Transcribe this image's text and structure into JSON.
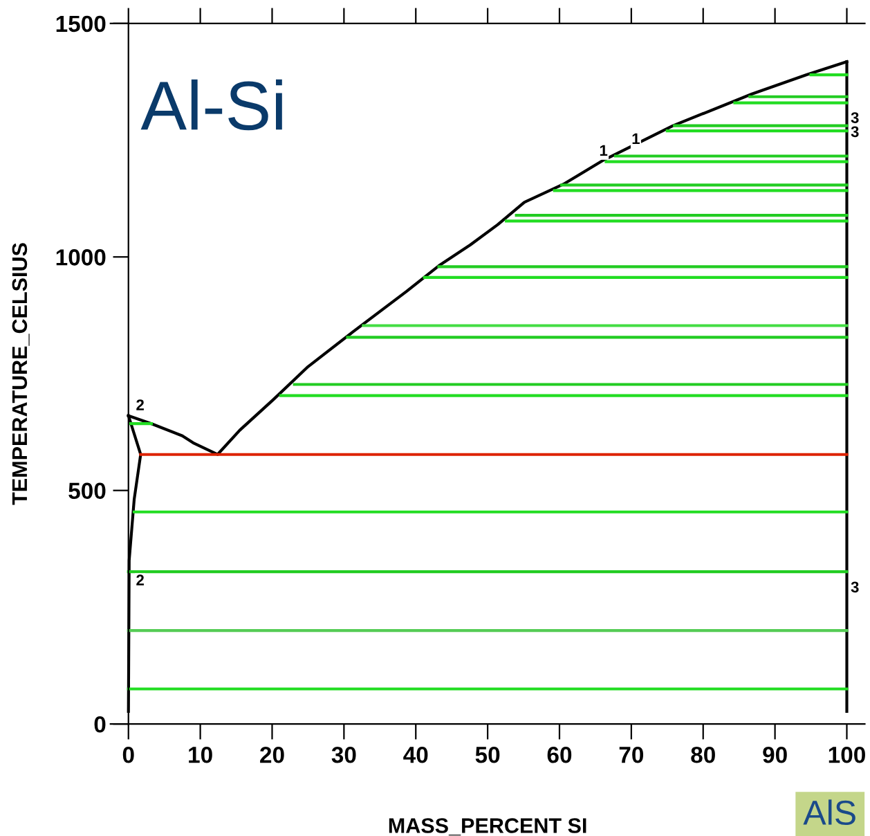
{
  "chart_data": {
    "type": "line",
    "title": "Al-Si",
    "xlabel": "MASS_PERCENT SI",
    "ylabel": "TEMPERATURE_CELSIUS",
    "xlim": [
      -2.5,
      102.5
    ],
    "ylim": [
      0,
      1500
    ],
    "xticks": [
      0,
      10,
      20,
      30,
      40,
      50,
      60,
      70,
      80,
      90,
      100
    ],
    "yticks": [
      0,
      500,
      1000,
      1500
    ],
    "grid": false,
    "marker": "none",
    "line_style": "solid",
    "series": [
      {
        "color": "#000000",
        "x": [
          0,
          3.2,
          7.5,
          9,
          12.4,
          15.5,
          20.2,
          25,
          31.2,
          38.7,
          43.2,
          47.6,
          51.4,
          55.1,
          60.7,
          66.1,
          75.8,
          86.8,
          94.4,
          100
        ],
        "values": [
          660,
          643,
          617,
          602,
          577,
          629,
          695,
          765,
          839,
          926,
          981,
          1026,
          1069,
          1117,
          1157,
          1207,
          1281,
          1349,
          1390,
          1418
        ]
      },
      {
        "color": "#000000",
        "x": [
          0,
          1.7,
          0.8,
          0.1,
          0
        ],
        "values": [
          660,
          577,
          481,
          350,
          27
        ]
      },
      {
        "color": "#000000",
        "x": [
          100,
          100
        ],
        "values": [
          1418,
          27
        ]
      },
      {
        "color": "#22dd22",
        "x": [
          95,
          100
        ],
        "values": [
          1390,
          1390
        ]
      },
      {
        "color": "#22cc22",
        "x": [
          86.5,
          100
        ],
        "values": [
          1343,
          1343
        ]
      },
      {
        "color": "#22dd22",
        "x": [
          84.4,
          100
        ],
        "values": [
          1330,
          1330
        ]
      },
      {
        "color": "#22cc22",
        "x": [
          76,
          100
        ],
        "values": [
          1281,
          1281
        ]
      },
      {
        "color": "#22dd22",
        "x": [
          75,
          100
        ],
        "values": [
          1270,
          1270
        ]
      },
      {
        "color": "#22cc22",
        "x": [
          67.8,
          100
        ],
        "values": [
          1216,
          1216
        ]
      },
      {
        "color": "#22dd22",
        "x": [
          66.5,
          100
        ],
        "values": [
          1204,
          1204
        ]
      },
      {
        "color": "#22cc22",
        "x": [
          60.3,
          100
        ],
        "values": [
          1154,
          1154
        ]
      },
      {
        "color": "#22dd22",
        "x": [
          59.3,
          100
        ],
        "values": [
          1142,
          1142
        ]
      },
      {
        "color": "#22cc22",
        "x": [
          54,
          100
        ],
        "values": [
          1089,
          1089
        ]
      },
      {
        "color": "#22dd22",
        "x": [
          52.6,
          100
        ],
        "values": [
          1077,
          1077
        ]
      },
      {
        "color": "#22cc22",
        "x": [
          43.2,
          100
        ],
        "values": [
          979,
          979
        ]
      },
      {
        "color": "#22dd22",
        "x": [
          41.2,
          100
        ],
        "values": [
          956,
          956
        ]
      },
      {
        "color": "#44dd44",
        "x": [
          32.7,
          100
        ],
        "values": [
          853,
          853
        ]
      },
      {
        "color": "#22cc22",
        "x": [
          30.5,
          100
        ],
        "values": [
          828,
          828
        ]
      },
      {
        "color": "#22cc22",
        "x": [
          23.1,
          100
        ],
        "values": [
          727,
          727
        ]
      },
      {
        "color": "#22dd22",
        "x": [
          21.2,
          100
        ],
        "values": [
          703,
          703
        ]
      },
      {
        "color": "#22dd22",
        "x": [
          0.3,
          3.2
        ],
        "values": [
          643,
          643
        ]
      },
      {
        "color": "#dd2200",
        "x": [
          1.7,
          100
        ],
        "values": [
          577,
          577
        ]
      },
      {
        "color": "#22dd22",
        "x": [
          0.8,
          100
        ],
        "values": [
          454,
          454
        ]
      },
      {
        "color": "#22cc22",
        "x": [
          0,
          100
        ],
        "values": [
          326,
          326
        ]
      },
      {
        "color": "#55cc55",
        "x": [
          0,
          100
        ],
        "values": [
          200,
          200
        ]
      },
      {
        "color": "#22dd22",
        "x": [
          0,
          100
        ],
        "values": [
          75,
          75
        ]
      }
    ],
    "annotations": [
      {
        "text": "2",
        "x": 0.5,
        "y": 665
      },
      {
        "text": "2",
        "x": 0.5,
        "y": 290
      },
      {
        "text": "1",
        "x": 65,
        "y": 1210
      },
      {
        "text": "1",
        "x": 69.5,
        "y": 1235
      },
      {
        "text": "3",
        "x": 100,
        "y": 1280
      },
      {
        "text": "3",
        "x": 100,
        "y": 1250
      },
      {
        "text": "3",
        "x": 100,
        "y": 275
      },
      "AlS"
    ]
  }
}
